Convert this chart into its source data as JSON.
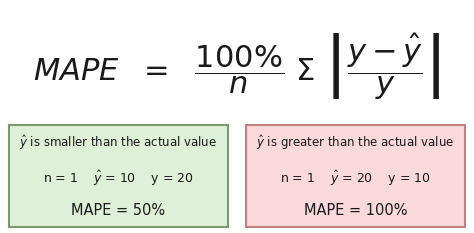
{
  "background_color": "#ffffff",
  "text_color": "#1a1a1a",
  "formula_fontsize": 22,
  "box_left_facecolor": "#dff0d8",
  "box_left_edgecolor": "#7a9a6a",
  "box_right_facecolor": "#f9d9d9",
  "box_right_edgecolor": "#c08080",
  "left_title": "$\\hat{y}$ is smaller than the actual value",
  "left_values": "n = 1    $\\hat{y}$ = 10    y = 20",
  "left_result": "MAPE = 50%",
  "right_title": "$\\hat{y}$ is greater than the actual value",
  "right_values": "n = 1    $\\hat{y}$ = 20    y = 10",
  "right_result": "MAPE = 100%",
  "title_fontsize": 8.5,
  "values_fontsize": 9,
  "result_fontsize": 10.5
}
